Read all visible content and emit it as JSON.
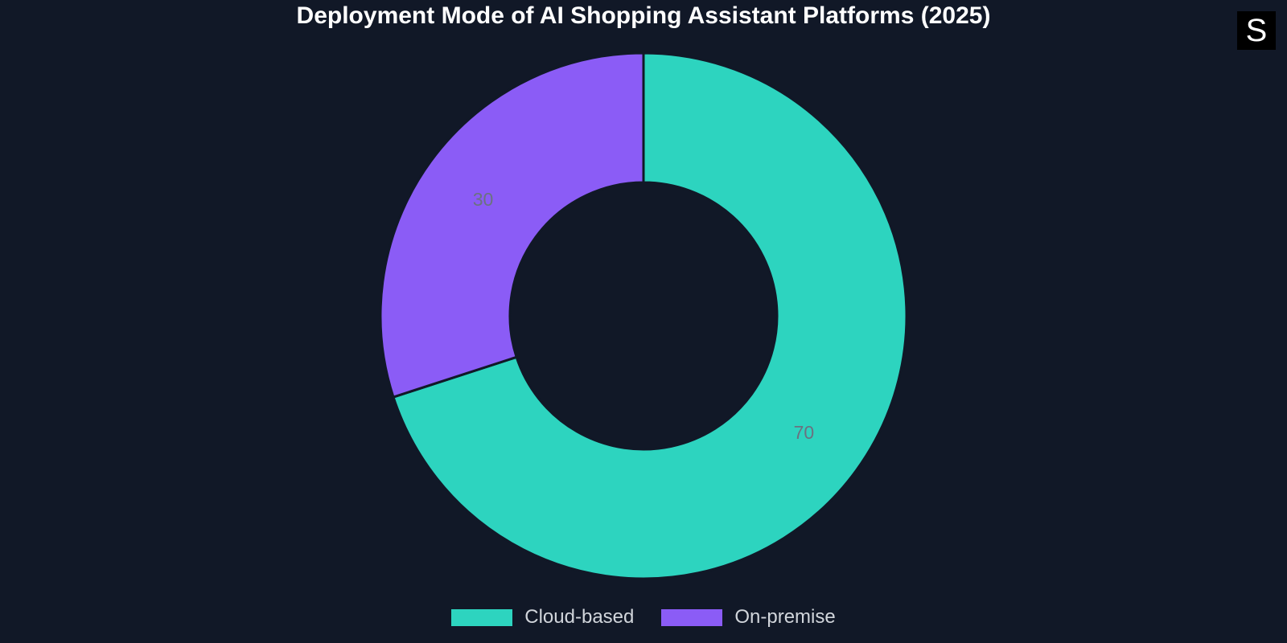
{
  "chart_data": {
    "type": "pie",
    "variant": "donut",
    "title": "Deployment Mode of AI Shopping Assistant Platforms (2025)",
    "categories": [
      "Cloud-based",
      "On-premise"
    ],
    "values": [
      70,
      30
    ],
    "data_labels": [
      "70",
      "30"
    ],
    "colors": [
      "#2dd4bf",
      "#8b5cf6"
    ],
    "legend_position": "bottom-center"
  },
  "theme": {
    "background": "#111827",
    "slice_border": "#111827"
  },
  "logo": {
    "icon": "s-logo-icon",
    "text": "S"
  }
}
